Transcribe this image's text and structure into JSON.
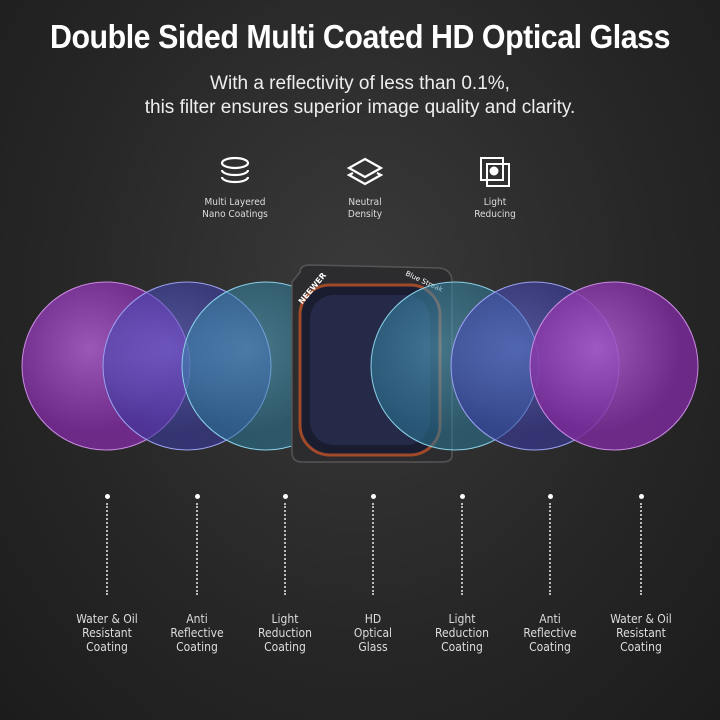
{
  "title": "Double Sided Multi Coated HD Optical Glass",
  "subtitle": [
    "With a reflectivity of less than 0.1%,",
    "this filter ensures superior image quality and clarity."
  ],
  "features": [
    {
      "icon": "stacked-discs-icon",
      "line1": "Multi Layered",
      "line2": "Nano Coatings"
    },
    {
      "icon": "layers-icon",
      "line1": "Neutral",
      "line2": "Density"
    },
    {
      "icon": "overlapping-squares-icon",
      "line1": "Light",
      "line2": "Reducing"
    }
  ],
  "filter": {
    "brand": "NEEWER",
    "model": "Blue Streak"
  },
  "layers": [
    {
      "line1": "Water & Oil",
      "line2": "Resistant",
      "line3": "Coating",
      "color": "#9a45b8"
    },
    {
      "line1": "Anti",
      "line2": "Reflective",
      "line3": "Coating",
      "color": "#5a56c8"
    },
    {
      "line1": "Light",
      "line2": "Reduction",
      "line3": "Coating",
      "color": "#3f9ab8"
    },
    {
      "line1": "HD",
      "line2": "Optical",
      "line3": "Glass",
      "color": "#2a2e48"
    },
    {
      "line1": "Light",
      "line2": "Reduction",
      "line3": "Coating",
      "color": "#3f9ab8"
    },
    {
      "line1": "Anti",
      "line2": "Reflective",
      "line3": "Coating",
      "color": "#5a6ad0"
    },
    {
      "line1": "Water & Oil",
      "line2": "Resistant",
      "line3": "Coating",
      "color": "#9a45b8"
    }
  ]
}
